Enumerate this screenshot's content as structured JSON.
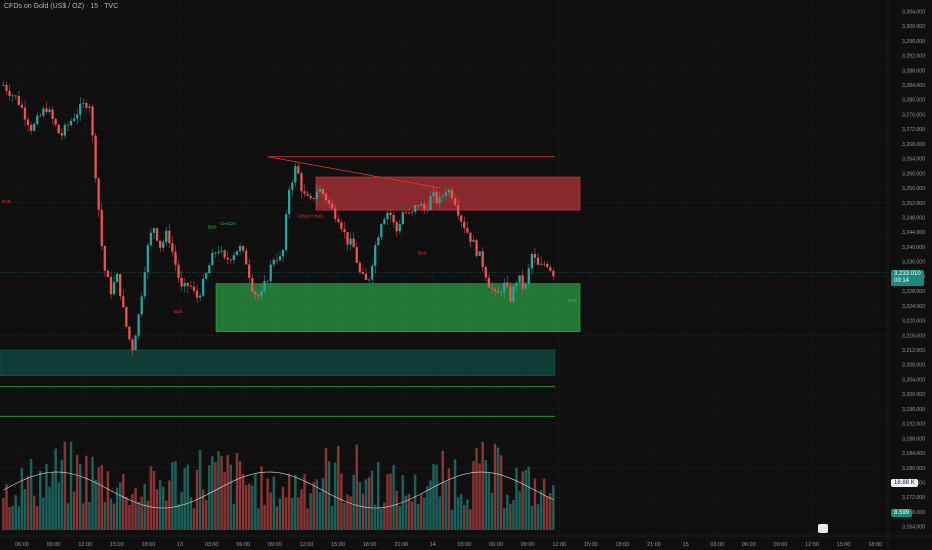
{
  "header": {
    "title": "CFDs on Gold (US$ / OZ) · 15 · TVC"
  },
  "chart_data": {
    "type": "candlestick",
    "symbol": "CFDs on Gold (US$ / OZ)",
    "interval": "15",
    "source": "TVC",
    "ylim": [
      3162,
      3306
    ],
    "y_ticks": [
      3164,
      3168,
      3172,
      3176,
      3180,
      3184,
      3188,
      3192,
      3196,
      3200,
      3204,
      3208,
      3212,
      3216,
      3220,
      3224,
      3228,
      3232,
      3236,
      3240,
      3244,
      3248,
      3252,
      3256,
      3260,
      3264,
      3268,
      3272,
      3276,
      3280,
      3284,
      3288,
      3292,
      3296,
      3300,
      3304
    ],
    "x_ticks": [
      "06:00",
      "09:00",
      "12:00",
      "15:00",
      "18:00",
      "13",
      "03:00",
      "06:00",
      "09:00",
      "12:00",
      "15:00",
      "18:00",
      "21:00",
      "14",
      "03:00",
      "06:00",
      "09:00",
      "12:00",
      "15:00",
      "18:00",
      "21:00",
      "15",
      "03:00",
      "06:00",
      "09:00",
      "12:00",
      "15:00",
      "18:00"
    ],
    "price_series": [
      {
        "t": 0,
        "p": 3284
      },
      {
        "t": 2,
        "p": 3280
      },
      {
        "t": 4,
        "p": 3272
      },
      {
        "t": 6,
        "p": 3278
      },
      {
        "t": 8,
        "p": 3270
      },
      {
        "t": 10,
        "p": 3276
      },
      {
        "t": 12,
        "p": 3280
      },
      {
        "t": 13,
        "p": 3258
      },
      {
        "t": 14,
        "p": 3235
      },
      {
        "t": 15,
        "p": 3228
      },
      {
        "t": 16,
        "p": 3232
      },
      {
        "t": 17,
        "p": 3220
      },
      {
        "t": 18,
        "p": 3212
      },
      {
        "t": 19,
        "p": 3222
      },
      {
        "t": 20,
        "p": 3238
      },
      {
        "t": 21,
        "p": 3246
      },
      {
        "t": 22,
        "p": 3240
      },
      {
        "t": 23,
        "p": 3244
      },
      {
        "t": 24,
        "p": 3236
      },
      {
        "t": 25,
        "p": 3228
      },
      {
        "t": 26,
        "p": 3230
      },
      {
        "t": 27,
        "p": 3226
      },
      {
        "t": 28,
        "p": 3230
      },
      {
        "t": 29,
        "p": 3236
      },
      {
        "t": 30,
        "p": 3240
      },
      {
        "t": 31,
        "p": 3236
      },
      {
        "t": 32,
        "p": 3238
      },
      {
        "t": 33,
        "p": 3240
      },
      {
        "t": 34,
        "p": 3236
      },
      {
        "t": 35,
        "p": 3228
      },
      {
        "t": 36,
        "p": 3226
      },
      {
        "t": 37,
        "p": 3232
      },
      {
        "t": 38,
        "p": 3238
      },
      {
        "t": 39,
        "p": 3236
      },
      {
        "t": 40,
        "p": 3256
      },
      {
        "t": 41,
        "p": 3262
      },
      {
        "t": 42,
        "p": 3254
      },
      {
        "t": 43,
        "p": 3252
      },
      {
        "t": 44,
        "p": 3256
      },
      {
        "t": 45,
        "p": 3254
      },
      {
        "t": 46,
        "p": 3250
      },
      {
        "t": 47,
        "p": 3248
      },
      {
        "t": 48,
        "p": 3242
      },
      {
        "t": 49,
        "p": 3240
      },
      {
        "t": 50,
        "p": 3232
      },
      {
        "t": 51,
        "p": 3230
      },
      {
        "t": 52,
        "p": 3240
      },
      {
        "t": 53,
        "p": 3248
      },
      {
        "t": 54,
        "p": 3250
      },
      {
        "t": 55,
        "p": 3244
      },
      {
        "t": 56,
        "p": 3250
      },
      {
        "t": 57,
        "p": 3248
      },
      {
        "t": 58,
        "p": 3252
      },
      {
        "t": 59,
        "p": 3250
      },
      {
        "t": 60,
        "p": 3254
      },
      {
        "t": 61,
        "p": 3252
      },
      {
        "t": 62,
        "p": 3256
      },
      {
        "t": 63,
        "p": 3254
      },
      {
        "t": 64,
        "p": 3248
      },
      {
        "t": 65,
        "p": 3244
      },
      {
        "t": 66,
        "p": 3240
      },
      {
        "t": 67,
        "p": 3236
      },
      {
        "t": 68,
        "p": 3230
      },
      {
        "t": 69,
        "p": 3226
      },
      {
        "t": 70,
        "p": 3230
      },
      {
        "t": 71,
        "p": 3226
      },
      {
        "t": 72,
        "p": 3232
      },
      {
        "t": 73,
        "p": 3228
      },
      {
        "t": 74,
        "p": 3238
      },
      {
        "t": 75,
        "p": 3234
      },
      {
        "t": 76,
        "p": 3236
      },
      {
        "t": 77,
        "p": 3233
      }
    ],
    "last_price": {
      "value": "3,233.010",
      "countdown": "09:14"
    },
    "volume_ma_value": "18.88 K",
    "volume_value": "8.599",
    "zones": [
      {
        "name": "supply-zone",
        "from": 3250,
        "to": 3259,
        "color": "#d93a42"
      },
      {
        "name": "demand-zone",
        "from": 3217,
        "to": 3230,
        "color": "#2ebd4e"
      },
      {
        "name": "lower-demand-zone",
        "from": 3205,
        "to": 3212,
        "color": "#0e5a4c"
      }
    ],
    "levels": [
      {
        "name": "resistance-line",
        "price": 3264.5,
        "color": "#e8383d"
      },
      {
        "name": "support-line-1",
        "price": 3202,
        "color": "#2ebd4e"
      },
      {
        "name": "support-line-2",
        "price": 3194,
        "color": "#2ebd4e"
      }
    ],
    "annotations": [
      {
        "text": "BoS",
        "price": 3252,
        "color": "#e8383d"
      },
      {
        "text": "CHoCH",
        "price": 3246,
        "color": "#2ebd4e"
      },
      {
        "text": "BoS",
        "price": 3245,
        "color": "#2ebd4e"
      },
      {
        "text": "CHoCH BoS",
        "price": 3248,
        "color": "#e8383d"
      },
      {
        "text": "BoS",
        "price": 3238,
        "color": "#e8383d"
      },
      {
        "text": "BoS",
        "price": 3222,
        "color": "#e8383d"
      },
      {
        "text": "BoS",
        "price": 3225,
        "color": "#2ebd4e"
      }
    ],
    "colors": {
      "up": "#26a69a",
      "down": "#ef5350",
      "background": "#0f0f0f",
      "grid": "#1c1c1c"
    }
  }
}
